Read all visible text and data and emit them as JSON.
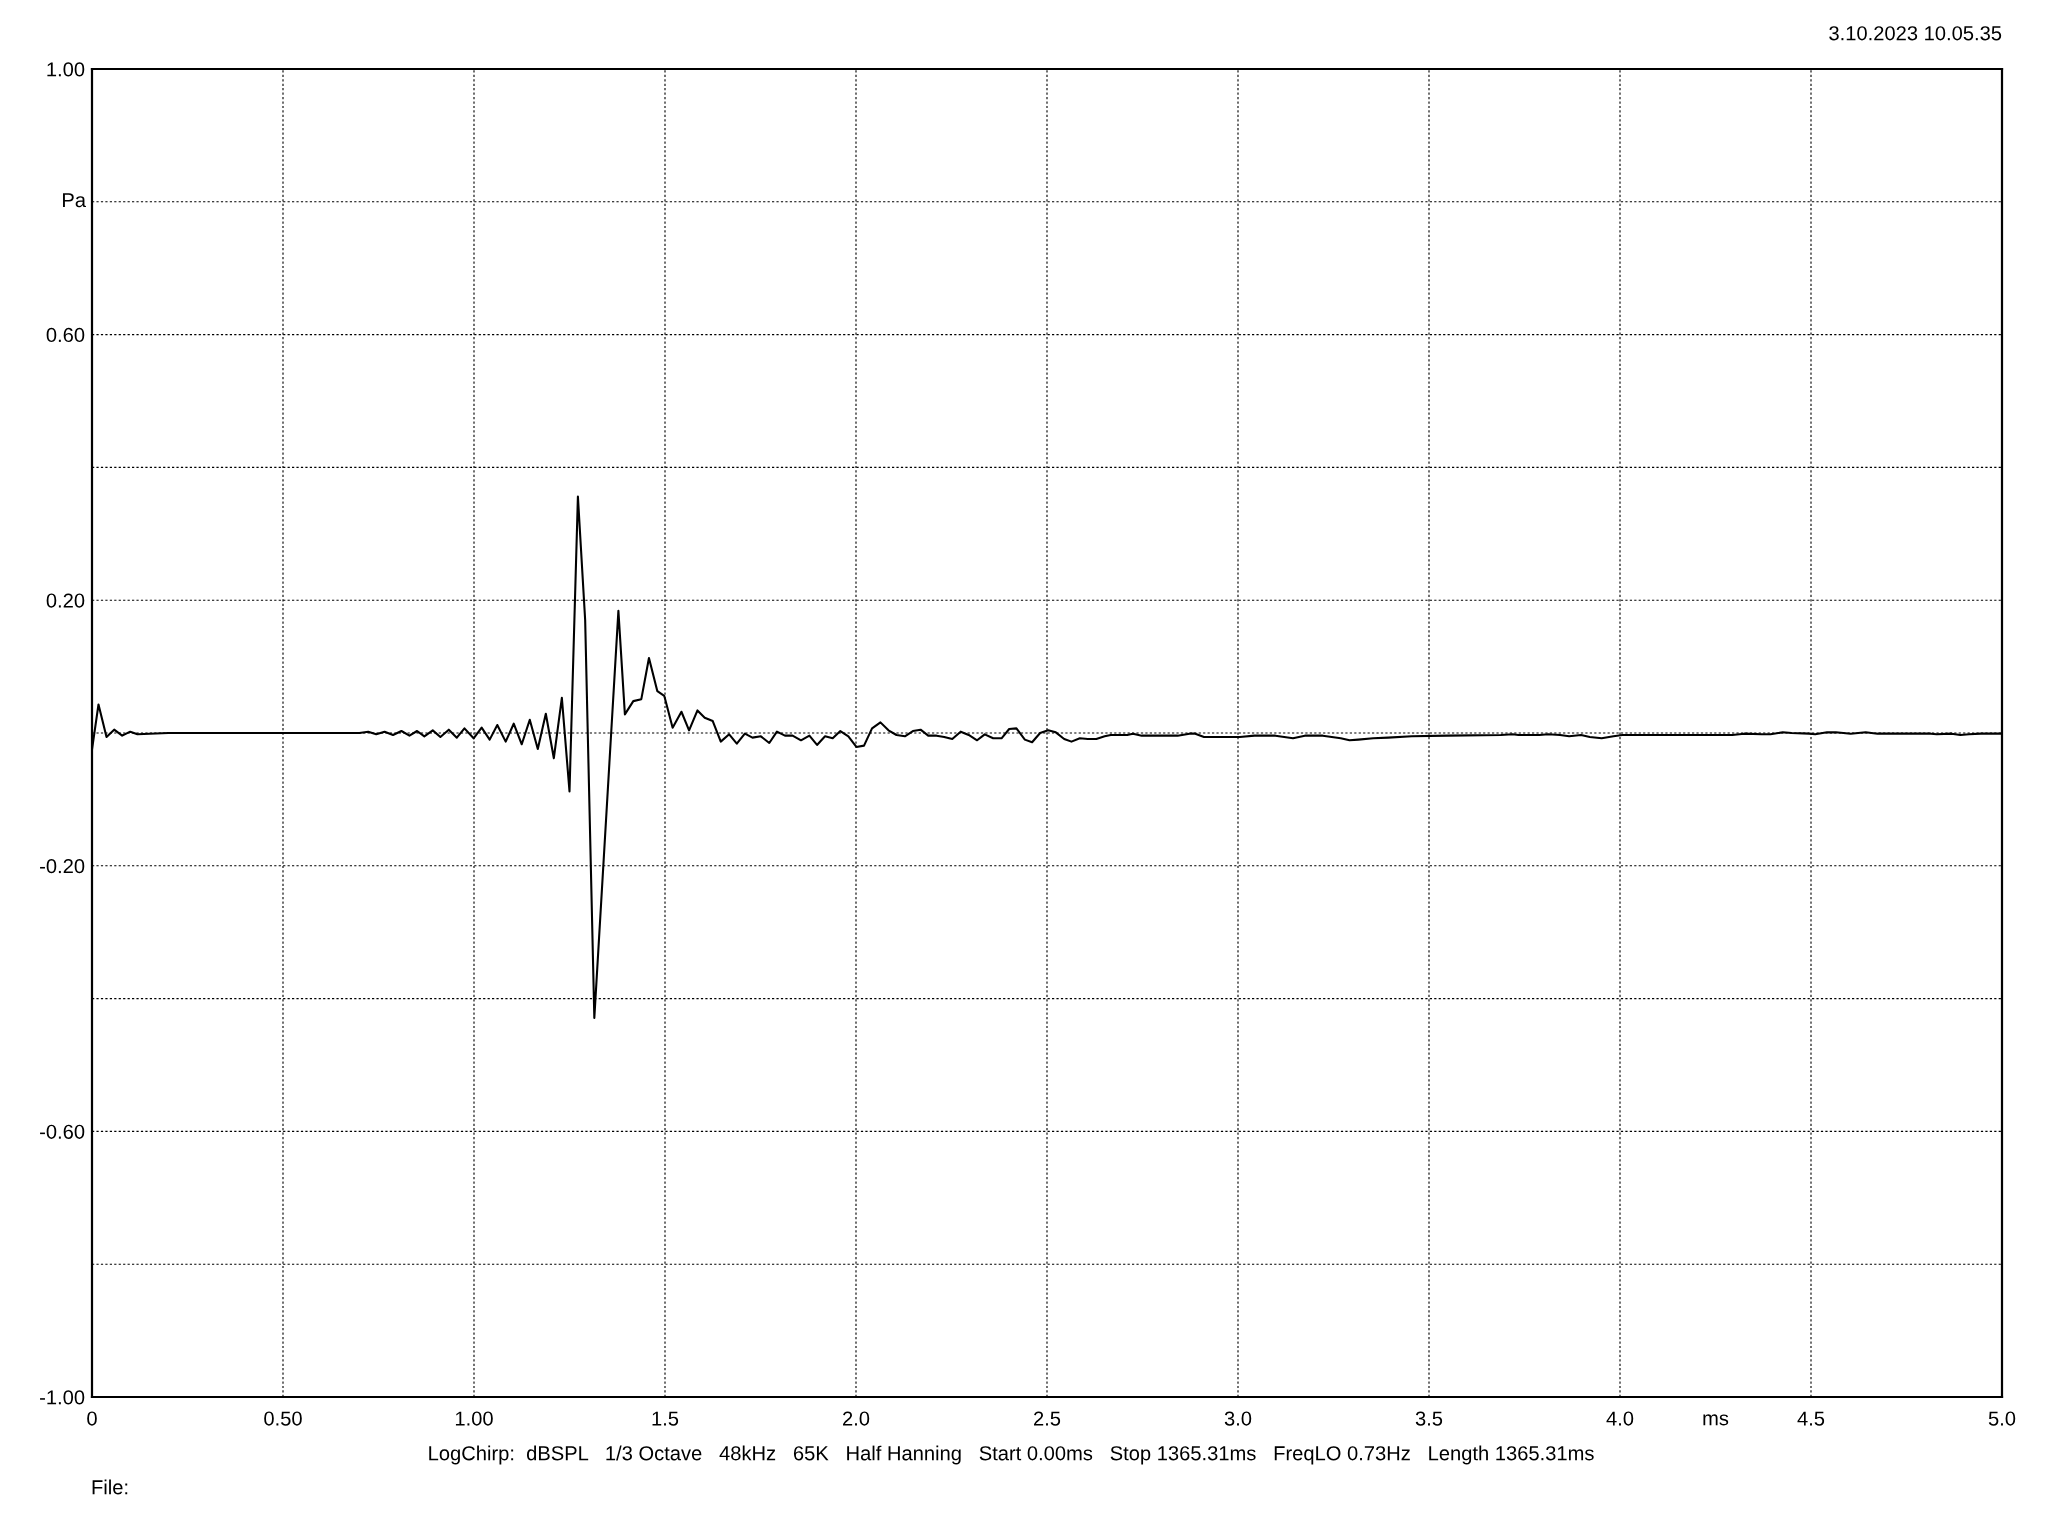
{
  "chart_data": {
    "type": "line",
    "annotations": [
      "3.10.2023 10.05.35",
      "LogChirp:  dBSPL   1/3 Octave   48kHz   65K   Half Hanning   Start 0.00ms   Stop 1365.31ms   FreqLO 0.73Hz   Length 1365.31ms",
      "File:"
    ],
    "xlabel": "ms",
    "ylabel": "Pa",
    "x": [
      0.0,
      0.017,
      0.038,
      0.058,
      0.079,
      0.1,
      0.119,
      0.2,
      0.3,
      0.4,
      0.5,
      0.6,
      0.7,
      0.723,
      0.744,
      0.766,
      0.788,
      0.81,
      0.831,
      0.851,
      0.87,
      0.892,
      0.912,
      0.934,
      0.955,
      0.975,
      0.999,
      1.02,
      1.041,
      1.061,
      1.083,
      1.104,
      1.125,
      1.146,
      1.167,
      1.188,
      1.209,
      1.23,
      1.25,
      1.272,
      1.291,
      1.315,
      1.378,
      1.395,
      1.417,
      1.438,
      1.458,
      1.48,
      1.498,
      1.52,
      1.543,
      1.563,
      1.585,
      1.604,
      1.625,
      1.646,
      1.668,
      1.688,
      1.709,
      1.729,
      1.751,
      1.773,
      1.793,
      1.814,
      1.834,
      1.856,
      1.878,
      1.898,
      1.919,
      1.939,
      1.959,
      1.98,
      2.001,
      2.021,
      2.042,
      2.064,
      2.085,
      2.106,
      2.128,
      2.149,
      2.169,
      2.189,
      2.211,
      2.231,
      2.252,
      2.274,
      2.295,
      2.317,
      2.337,
      2.359,
      2.381,
      2.401,
      2.42,
      2.442,
      2.461,
      2.482,
      2.503,
      2.523,
      2.545,
      2.564,
      2.586,
      2.607,
      2.629,
      2.651,
      2.667,
      2.71,
      2.725,
      2.748,
      2.842,
      2.873,
      2.888,
      2.911,
      3.005,
      3.043,
      3.098,
      3.121,
      3.144,
      3.175,
      3.222,
      3.269,
      3.292,
      3.315,
      3.354,
      3.393,
      3.455,
      3.548,
      3.688,
      3.719,
      3.734,
      3.789,
      3.812,
      3.843,
      3.867,
      3.898,
      3.921,
      3.952,
      3.983,
      4.006,
      4.185,
      4.216,
      4.294,
      4.325,
      4.371,
      4.394,
      4.426,
      4.449,
      4.495,
      4.511,
      4.542,
      4.565,
      4.604,
      4.643,
      4.674,
      4.728,
      4.814,
      4.829,
      4.868,
      4.891,
      4.914,
      4.945,
      5.0
    ],
    "values": [
      -0.025,
      0.043,
      -0.006,
      0.005,
      -0.004,
      0.002,
      -0.002,
      0.0,
      0.0,
      0.0,
      0.0,
      0.0,
      0.0,
      0.002,
      -0.002,
      0.002,
      -0.003,
      0.003,
      -0.004,
      0.003,
      -0.005,
      0.004,
      -0.006,
      0.005,
      -0.007,
      0.007,
      -0.008,
      0.008,
      -0.01,
      0.012,
      -0.013,
      0.014,
      -0.017,
      0.02,
      -0.024,
      0.029,
      -0.038,
      0.053,
      -0.088,
      0.356,
      0.17,
      -0.429,
      0.184,
      0.028,
      0.048,
      0.051,
      0.113,
      0.063,
      0.056,
      0.008,
      0.032,
      0.004,
      0.034,
      0.023,
      0.018,
      -0.013,
      -0.002,
      -0.016,
      -0.001,
      -0.007,
      -0.005,
      -0.015,
      0.002,
      -0.004,
      -0.004,
      -0.011,
      -0.004,
      -0.018,
      -0.005,
      -0.008,
      0.003,
      -0.005,
      -0.021,
      -0.019,
      0.007,
      0.016,
      0.004,
      -0.003,
      -0.005,
      0.003,
      0.005,
      -0.004,
      -0.004,
      -0.006,
      -0.009,
      0.002,
      -0.003,
      -0.011,
      -0.002,
      -0.008,
      -0.008,
      0.006,
      0.007,
      -0.01,
      -0.014,
      0.0,
      0.004,
      0.001,
      -0.009,
      -0.013,
      -0.008,
      -0.009,
      -0.009,
      -0.005,
      -0.003,
      -0.003,
      -0.001,
      -0.004,
      -0.004,
      -0.001,
      -0.001,
      -0.006,
      -0.006,
      -0.004,
      -0.004,
      -0.006,
      -0.008,
      -0.004,
      -0.004,
      -0.008,
      -0.011,
      -0.01,
      -0.008,
      -0.007,
      -0.005,
      -0.004,
      -0.003,
      -0.002,
      -0.003,
      -0.003,
      -0.002,
      -0.003,
      -0.005,
      -0.003,
      -0.006,
      -0.008,
      -0.005,
      -0.003,
      -0.003,
      -0.003,
      -0.003,
      -0.001,
      -0.002,
      -0.002,
      0.001,
      0.0,
      -0.001,
      -0.002,
      0.001,
      0.001,
      -0.001,
      0.001,
      -0.001,
      -0.001,
      -0.001,
      -0.002,
      -0.001,
      -0.003,
      -0.002,
      -0.001,
      -0.001
    ],
    "color": "#000000",
    "line_style": "solid",
    "xlim": [
      0,
      5
    ],
    "ylim": [
      -1,
      1
    ],
    "xticks": [
      0,
      {
        "value": 0.5,
        "label": "0.50"
      },
      {
        "value": 1,
        "label": "1.00"
      },
      1.5,
      {
        "value": 2,
        "label": "2.0"
      },
      2.5,
      {
        "value": 3,
        "label": "3.0"
      },
      3.5,
      {
        "value": 4,
        "label": "4.0"
      },
      4.5,
      {
        "value": 5,
        "label": "5.0"
      }
    ],
    "yticks": [
      {
        "value": -1,
        "label": "-1.00"
      },
      {
        "value": -0.8,
        "label": null
      },
      {
        "value": -0.6,
        "label": "-0.60"
      },
      {
        "value": -0.4,
        "label": null
      },
      {
        "value": -0.2,
        "label": "-0.20"
      },
      {
        "value": 0,
        "label": null
      },
      {
        "value": 0.2,
        "label": "0.20"
      },
      {
        "value": 0.4,
        "label": null
      },
      {
        "value": 0.6,
        "label": "0.60"
      },
      {
        "value": 0.8,
        "label": null
      },
      {
        "value": 1,
        "label": "1.00"
      }
    ],
    "grid": true
  }
}
